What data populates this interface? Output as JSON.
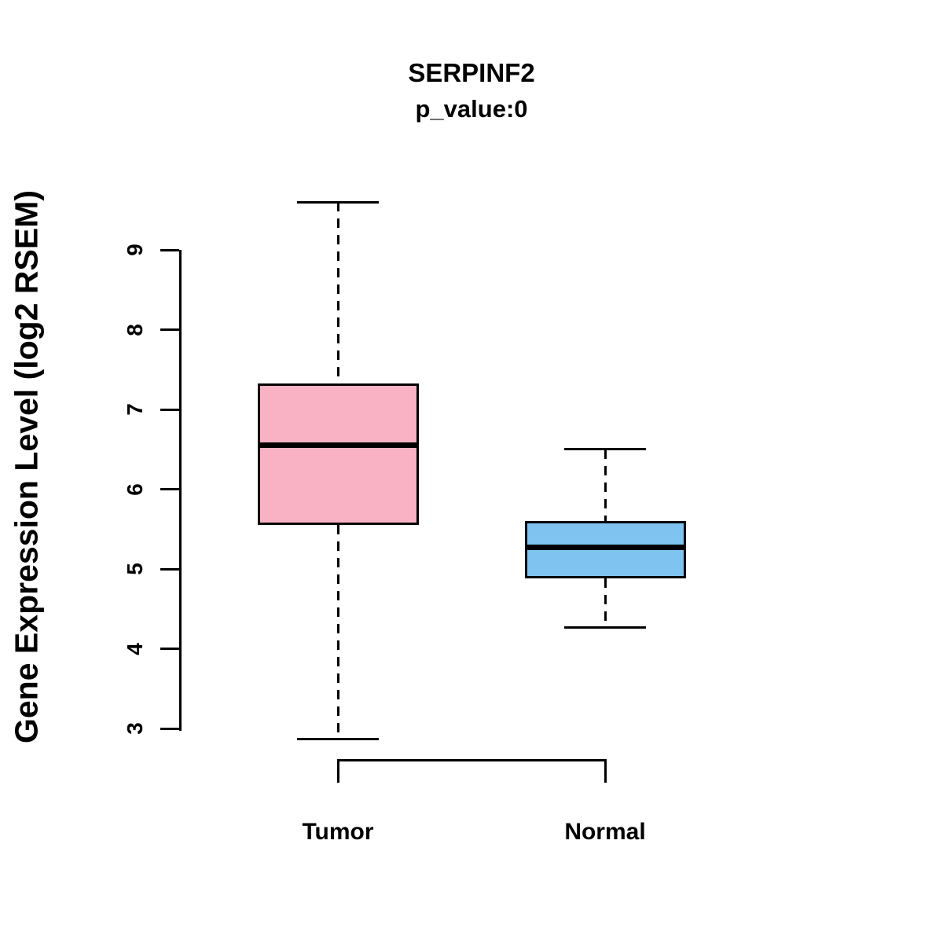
{
  "chart_data": {
    "type": "boxplot",
    "title": "SERPINF2",
    "subtitle": "p_value:0",
    "ylabel": "Gene Expression Level (log2 RSEM)",
    "xlabel": "",
    "yticks": [
      9,
      8,
      7,
      6,
      5,
      4,
      3
    ],
    "ylim": [
      2.6,
      9.9
    ],
    "grid": false,
    "legend": "none",
    "axis_color": "#000000",
    "categories": [
      "Tumor",
      "Normal"
    ],
    "series": [
      {
        "name": "Tumor",
        "color": "#F9B2C4",
        "whisker_low": 2.87,
        "q1": 5.55,
        "median": 6.55,
        "q3": 7.33,
        "whisker_high": 9.6
      },
      {
        "name": "Normal",
        "color": "#7FC4F0",
        "whisker_low": 4.27,
        "q1": 4.88,
        "median": 5.27,
        "q3": 5.6,
        "whisker_high": 6.5
      }
    ]
  }
}
